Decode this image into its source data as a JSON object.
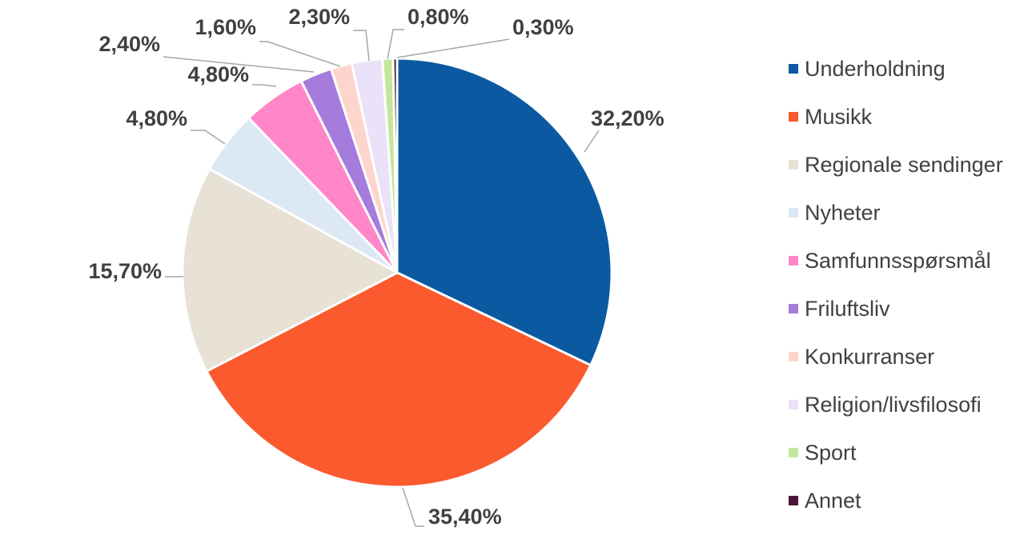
{
  "chart_data": {
    "type": "pie",
    "title": "",
    "start_angle_deg": 0,
    "direction": "clockwise",
    "legend_position": "right",
    "data_labels": "outside-with-leader-lines",
    "slices": [
      {
        "name": "Underholdning",
        "value": 32.2,
        "label": "32,20%",
        "color": "#0B5AA1"
      },
      {
        "name": "Musikk",
        "value": 35.4,
        "label": "35,40%",
        "color": "#FA5A2D"
      },
      {
        "name": "Regionale sendinger",
        "value": 15.7,
        "label": "15,70%",
        "color": "#E7E1D6"
      },
      {
        "name": "Nyheter",
        "value": 4.8,
        "label": "4,80%",
        "color": "#DCE8F4"
      },
      {
        "name": "Samfunnsspørsmål",
        "value": 4.8,
        "label": "4,80%",
        "color": "#FF86C8"
      },
      {
        "name": "Friluftsliv",
        "value": 2.4,
        "label": "2,40%",
        "color": "#A57BDC"
      },
      {
        "name": "Konkurranser",
        "value": 1.6,
        "label": "1,60%",
        "color": "#FDD5CC"
      },
      {
        "name": "Religion/livsfilosofi",
        "value": 2.3,
        "label": "2,30%",
        "color": "#EAE2F8"
      },
      {
        "name": "Sport",
        "value": 0.8,
        "label": "0,80%",
        "color": "#C3E79A"
      },
      {
        "name": "Annet",
        "value": 0.3,
        "label": "0,30%",
        "color": "#4B1535"
      }
    ]
  }
}
